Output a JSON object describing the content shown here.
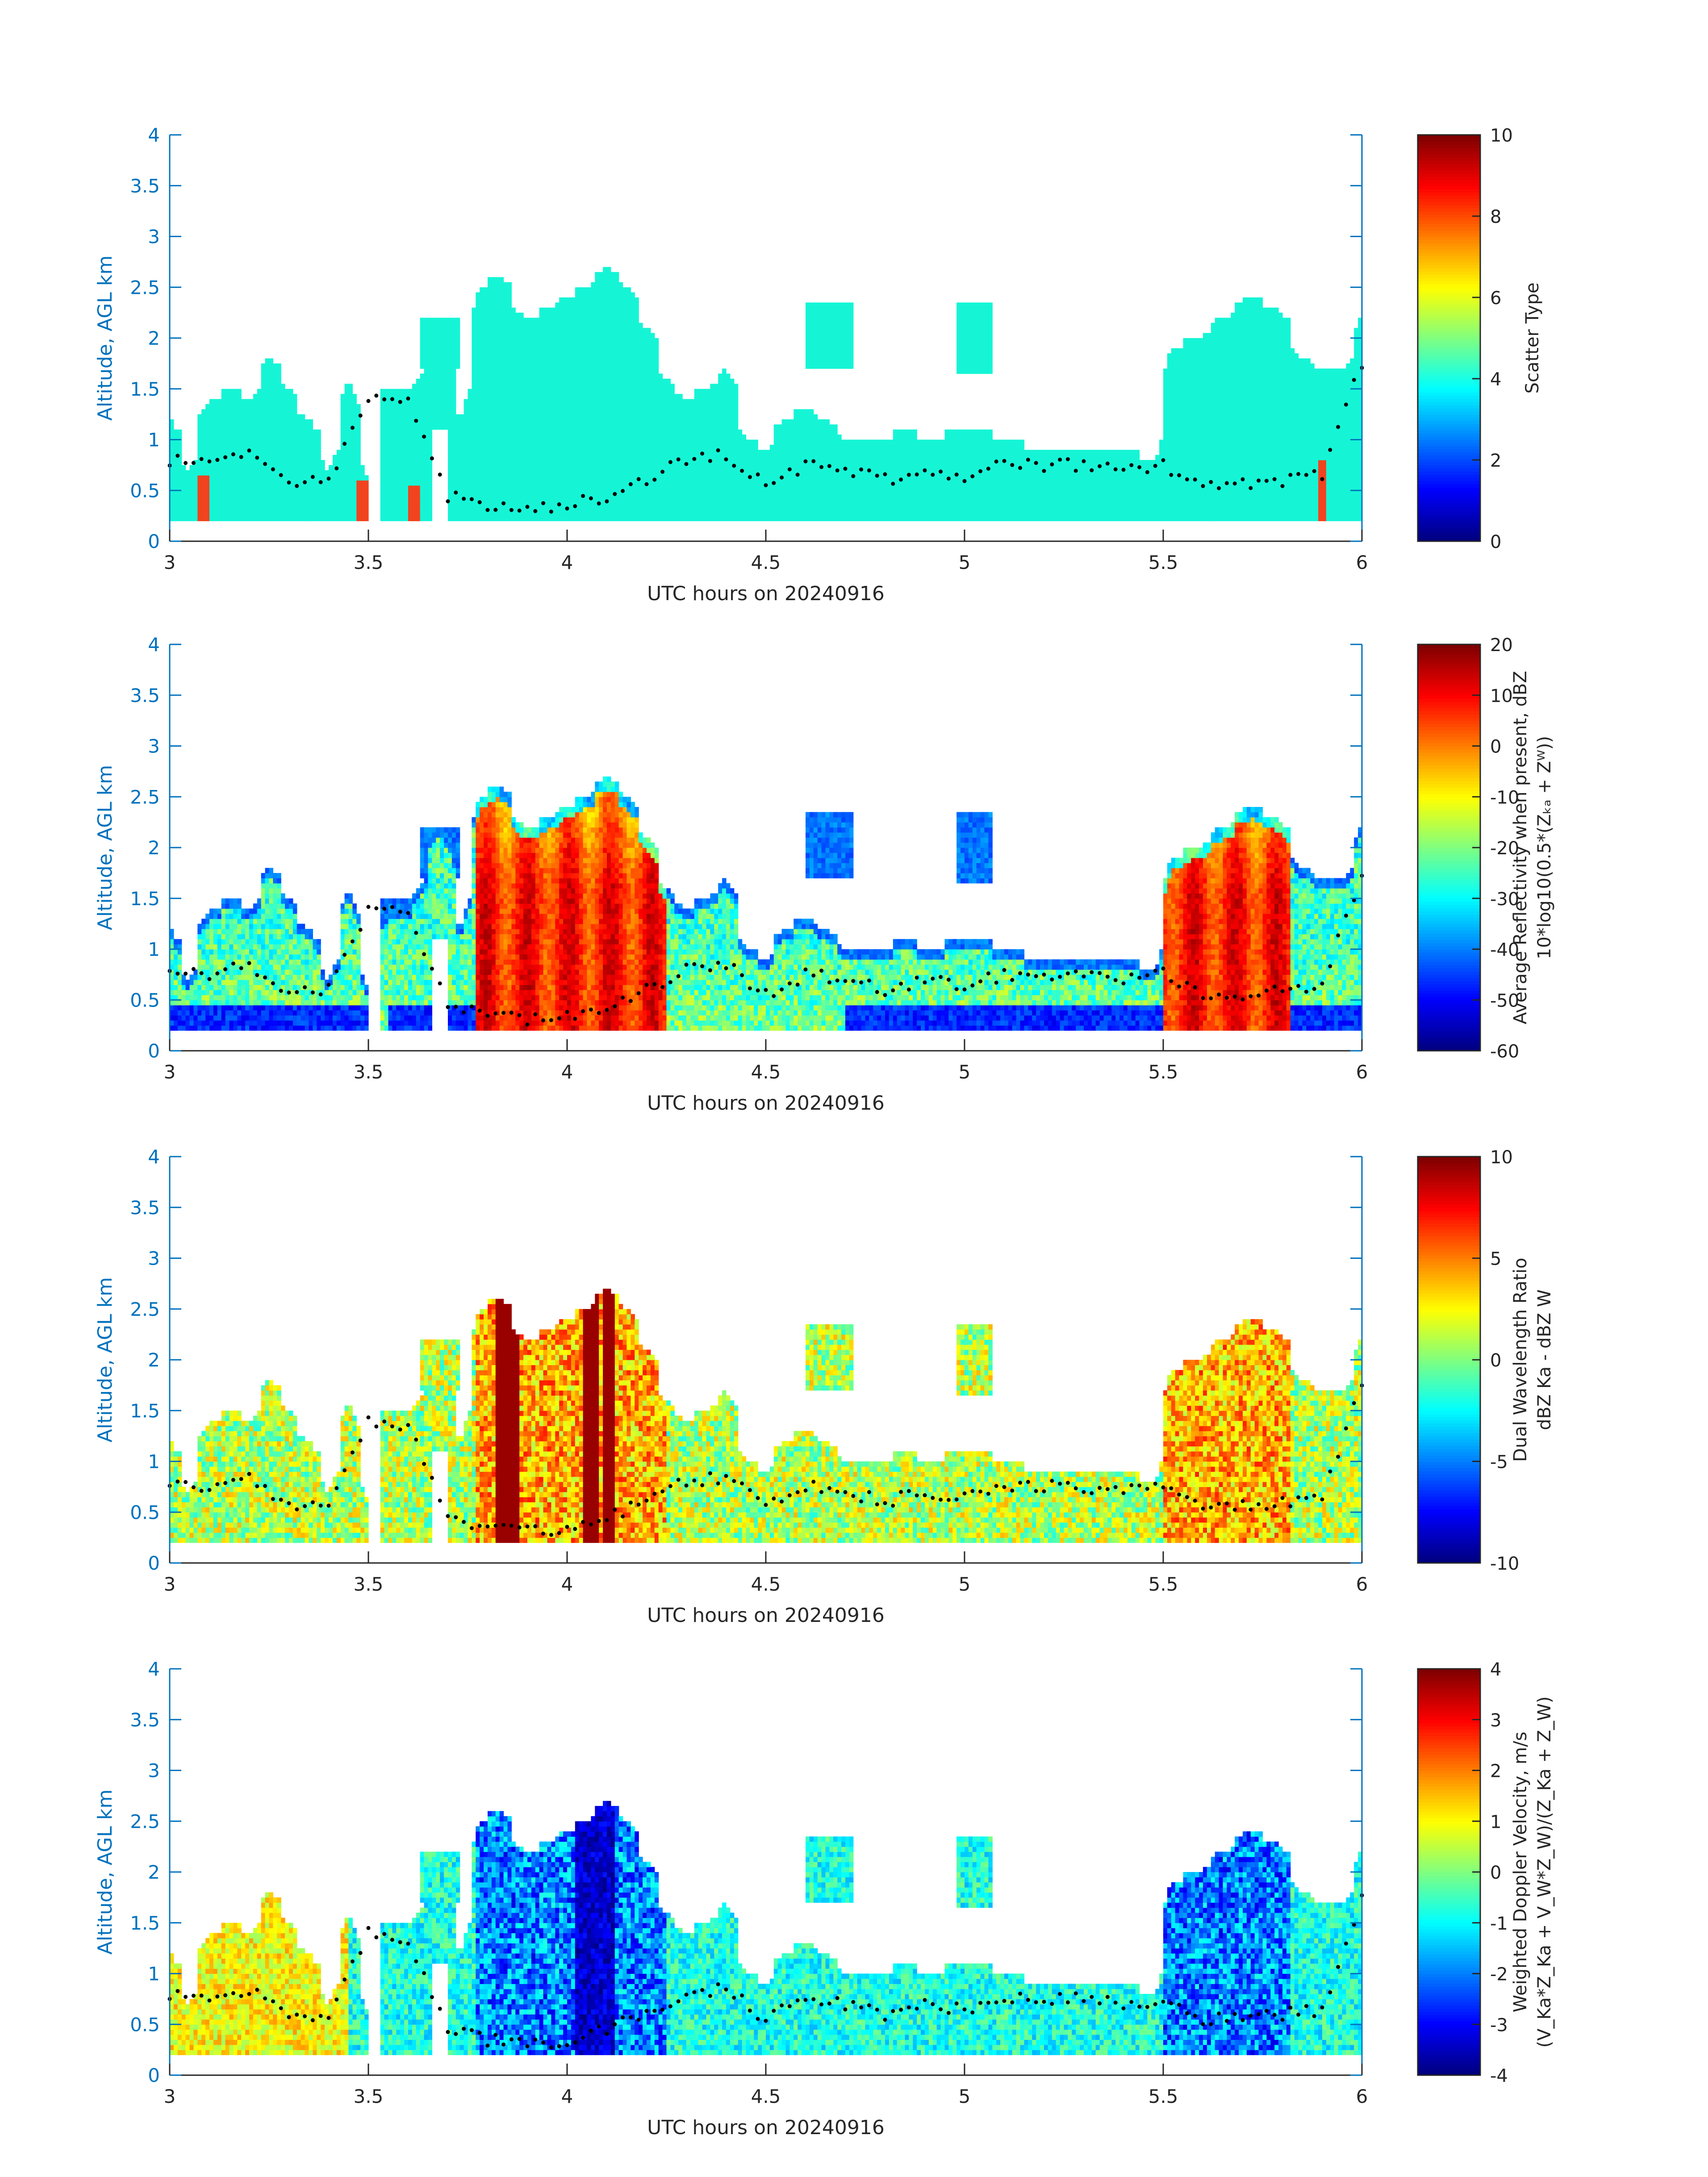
{
  "chart_data": [
    {
      "type": "heatmap",
      "xlabel": "UTC hours on 20240916",
      "ylabel": "Altitude, AGL km",
      "xlim": [
        3,
        6
      ],
      "ylim": [
        0,
        4
      ],
      "x_ticks": [
        "3",
        "3.5",
        "4",
        "4.5",
        "5",
        "5.5",
        "6"
      ],
      "y_ticks": [
        "0",
        "0.5",
        "1",
        "1.5",
        "2",
        "2.5",
        "3",
        "3.5",
        "4"
      ],
      "colorbar": {
        "label_lines": [
          "Scatter Type"
        ],
        "ticks": [
          "0",
          "2",
          "4",
          "6",
          "8",
          "10"
        ],
        "range": [
          0,
          10
        ]
      },
      "field": "scatter",
      "dominant_value": 3.7,
      "secondary_value": 8.6
    },
    {
      "type": "heatmap",
      "xlabel": "UTC hours on 20240916",
      "ylabel": "Altitude, AGL km",
      "xlim": [
        3,
        6
      ],
      "ylim": [
        0,
        4
      ],
      "x_ticks": [
        "3",
        "3.5",
        "4",
        "4.5",
        "5",
        "5.5",
        "6"
      ],
      "y_ticks": [
        "0",
        "0.5",
        "1",
        "1.5",
        "2",
        "2.5",
        "3",
        "3.5",
        "4"
      ],
      "colorbar": {
        "label_lines": [
          "Average Reflectivity when present, dBZ",
          "10*log10(0.5*(Zₖₐ + Zᵂ))"
        ],
        "ticks": [
          "-60",
          "-50",
          "-40",
          "-30",
          "-20",
          "-10",
          "0",
          "10",
          "20"
        ],
        "range": [
          -60,
          20
        ]
      },
      "field": "reflectivity"
    },
    {
      "type": "heatmap",
      "xlabel": "UTC hours on 20240916",
      "ylabel": "Altitude, AGL km",
      "xlim": [
        3,
        6
      ],
      "ylim": [
        0,
        4
      ],
      "x_ticks": [
        "3",
        "3.5",
        "4",
        "4.5",
        "5",
        "5.5",
        "6"
      ],
      "y_ticks": [
        "0",
        "0.5",
        "1",
        "1.5",
        "2",
        "2.5",
        "3",
        "3.5",
        "4"
      ],
      "colorbar": {
        "label_lines": [
          "Dual Wavelength Ratio",
          "dBZ Ka - dBZ W"
        ],
        "ticks": [
          "-10",
          "-5",
          "0",
          "5",
          "10"
        ],
        "range": [
          -10,
          10
        ]
      },
      "field": "dwr"
    },
    {
      "type": "heatmap",
      "xlabel": "UTC hours on 20240916",
      "ylabel": "Altitude, AGL km",
      "xlim": [
        3,
        6
      ],
      "ylim": [
        0,
        4
      ],
      "x_ticks": [
        "3",
        "3.5",
        "4",
        "4.5",
        "5",
        "5.5",
        "6"
      ],
      "y_ticks": [
        "0",
        "0.5",
        "1",
        "1.5",
        "2",
        "2.5",
        "3",
        "3.5",
        "4"
      ],
      "colorbar": {
        "label_lines": [
          "Weighted Doppler Velocity, m/s",
          "(V_Ka*Z_Ka + V_W*Z_W)/(Z_Ka + Z_W)"
        ],
        "ticks": [
          "-4",
          "-3",
          "-2",
          "-1",
          "0",
          "1",
          "2",
          "3",
          "4"
        ],
        "range": [
          -4,
          4
        ]
      },
      "field": "velocity"
    }
  ],
  "cloud_top_km": [
    [
      3.0,
      1.2
    ],
    [
      3.05,
      0.7
    ],
    [
      3.1,
      1.4
    ],
    [
      3.15,
      1.5
    ],
    [
      3.2,
      1.4
    ],
    [
      3.25,
      1.8
    ],
    [
      3.3,
      1.5
    ],
    [
      3.35,
      1.2
    ],
    [
      3.4,
      0.7
    ],
    [
      3.45,
      1.6
    ],
    [
      3.5,
      0.6
    ],
    [
      3.55,
      1.4
    ],
    [
      3.6,
      1.4
    ],
    [
      3.63,
      1.6
    ],
    [
      3.67,
      2.2
    ],
    [
      3.7,
      2.1
    ],
    [
      3.73,
      1.2
    ],
    [
      3.78,
      2.5
    ],
    [
      3.83,
      2.6
    ],
    [
      3.9,
      2.2
    ],
    [
      3.95,
      2.3
    ],
    [
      4.0,
      2.4
    ],
    [
      4.05,
      2.5
    ],
    [
      4.1,
      2.7
    ],
    [
      4.15,
      2.5
    ],
    [
      4.2,
      2.1
    ],
    [
      4.25,
      1.6
    ],
    [
      4.3,
      1.4
    ],
    [
      4.35,
      1.5
    ],
    [
      4.4,
      1.7
    ],
    [
      4.45,
      1.0
    ],
    [
      4.5,
      0.9
    ],
    [
      4.55,
      1.2
    ],
    [
      4.6,
      1.3
    ],
    [
      4.65,
      1.2
    ],
    [
      4.7,
      1.0
    ],
    [
      4.8,
      1.0
    ],
    [
      4.85,
      1.1
    ],
    [
      4.9,
      1.0
    ],
    [
      5.0,
      1.1
    ],
    [
      5.05,
      1.1
    ],
    [
      5.1,
      1.0
    ],
    [
      5.2,
      0.9
    ],
    [
      5.3,
      0.9
    ],
    [
      5.4,
      0.9
    ],
    [
      5.48,
      0.8
    ],
    [
      5.52,
      1.9
    ],
    [
      5.58,
      2.0
    ],
    [
      5.65,
      2.2
    ],
    [
      5.72,
      2.4
    ],
    [
      5.78,
      2.3
    ],
    [
      5.85,
      1.8
    ],
    [
      5.9,
      1.7
    ],
    [
      5.95,
      1.7
    ],
    [
      6.0,
      2.2
    ]
  ],
  "elevated_patches": [
    {
      "x0": 4.6,
      "x1": 4.72,
      "top": 2.35,
      "bot": 1.7
    },
    {
      "x0": 4.98,
      "x1": 5.07,
      "top": 2.35,
      "bot": 1.65
    },
    {
      "x0": 3.63,
      "x1": 3.73,
      "top": 2.2,
      "bot": 1.7
    },
    {
      "x0": 3.53,
      "x1": 3.66,
      "top": 1.5,
      "bot": 1.25
    }
  ],
  "gaps": [
    {
      "x0": 3.5,
      "x1": 3.53,
      "below": 1.25
    },
    {
      "x0": 3.66,
      "x1": 3.7,
      "below": 1.1
    }
  ],
  "melting_layer_km": [
    [
      3.0,
      0.8
    ],
    [
      3.1,
      0.75
    ],
    [
      3.2,
      0.85
    ],
    [
      3.3,
      0.55
    ],
    [
      3.4,
      0.6
    ],
    [
      3.5,
      1.4
    ],
    [
      3.6,
      1.35
    ],
    [
      3.7,
      0.45
    ],
    [
      3.8,
      0.35
    ],
    [
      3.9,
      0.3
    ],
    [
      4.0,
      0.35
    ],
    [
      4.1,
      0.45
    ],
    [
      4.2,
      0.6
    ],
    [
      4.3,
      0.8
    ],
    [
      4.4,
      0.85
    ],
    [
      4.5,
      0.55
    ],
    [
      4.6,
      0.75
    ],
    [
      4.7,
      0.7
    ],
    [
      4.8,
      0.6
    ],
    [
      4.9,
      0.7
    ],
    [
      5.0,
      0.65
    ],
    [
      5.1,
      0.75
    ],
    [
      5.2,
      0.75
    ],
    [
      5.3,
      0.75
    ],
    [
      5.4,
      0.7
    ],
    [
      5.5,
      0.75
    ],
    [
      5.6,
      0.55
    ],
    [
      5.7,
      0.55
    ],
    [
      5.8,
      0.6
    ],
    [
      5.9,
      0.65
    ],
    [
      6.0,
      1.75
    ]
  ],
  "colors": {
    "axis": "#0072bd",
    "text": "#262626",
    "scatter_fill": "#15f5d6",
    "marker": "#000000"
  }
}
